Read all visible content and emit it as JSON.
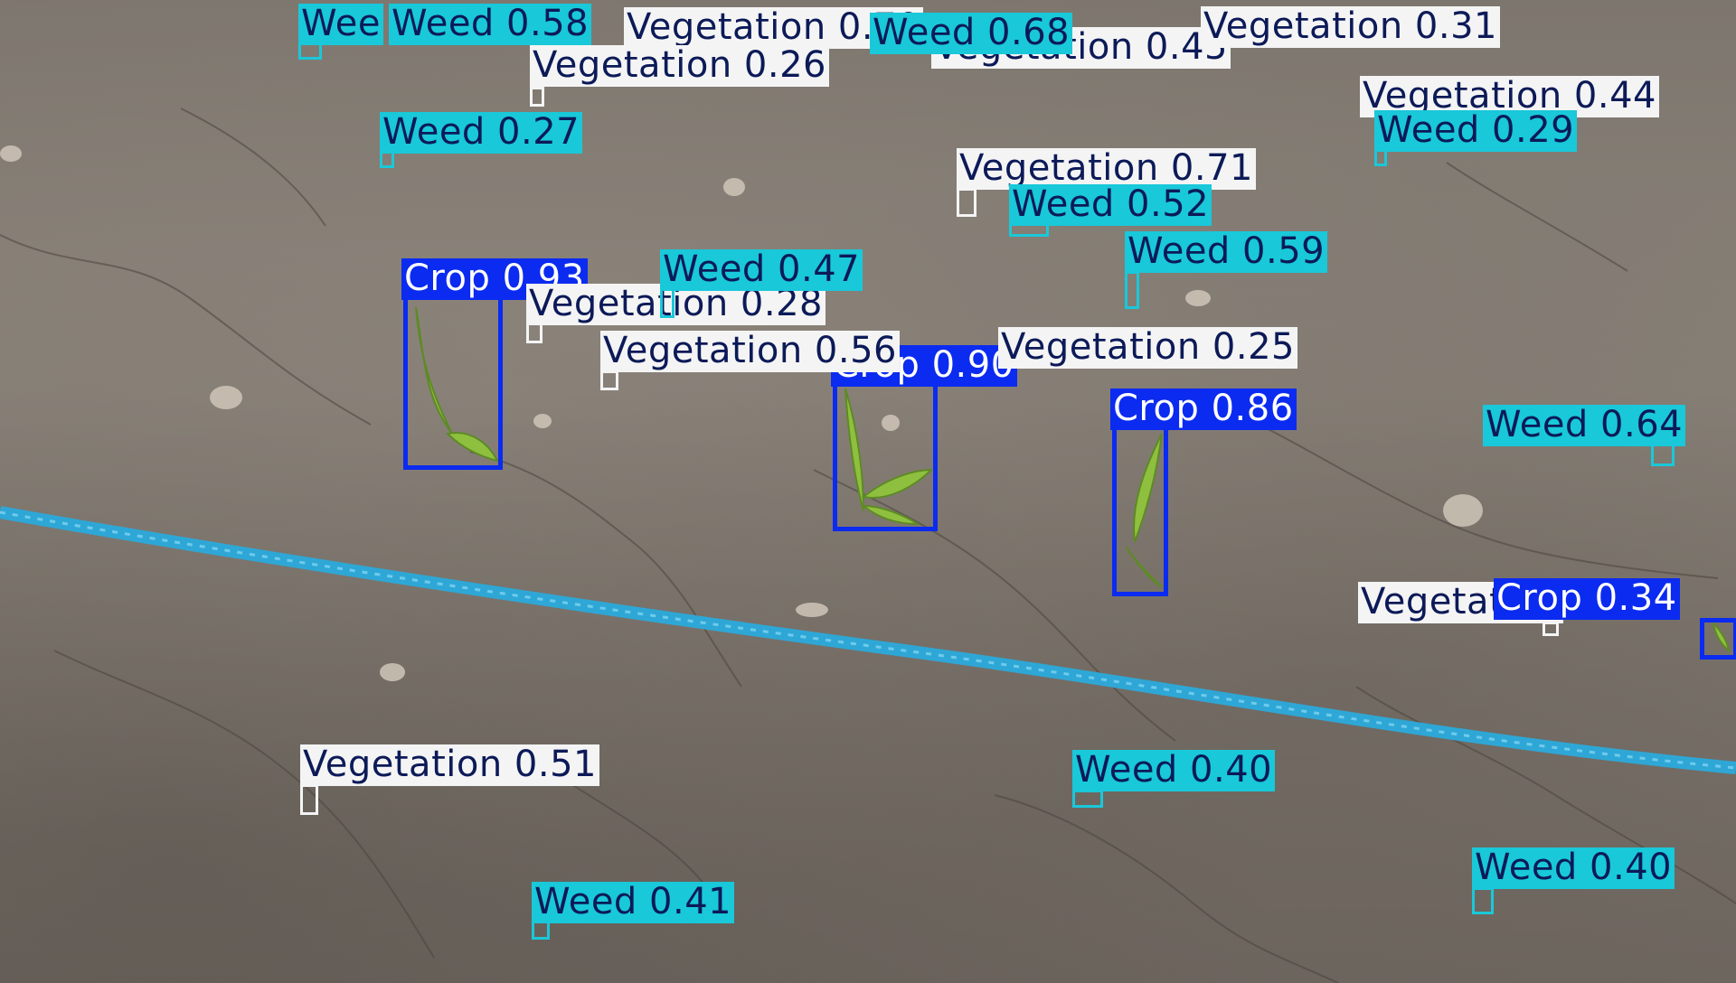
{
  "colors": {
    "crop": "#0b2bf0",
    "weed": "#19c8d9",
    "vegetation": "#f4f4f4",
    "label_text_dark": "#0c1a58",
    "soil": "#7d766e",
    "rope": "#2ea7d6"
  },
  "detections": [
    {
      "text": "Crop 0.93"
    },
    {
      "text": "Crop 0.90"
    },
    {
      "text": "Crop 0.86"
    },
    {
      "text": "Crop 0.34"
    },
    {
      "text": "Weed 0.58"
    },
    {
      "text": "Wee"
    },
    {
      "text": "Weed 0.68"
    },
    {
      "text": "Weed 0.27"
    },
    {
      "text": "Weed 0.29"
    },
    {
      "text": "Weed 0.52"
    },
    {
      "text": "Weed 0.59"
    },
    {
      "text": "Weed 0.47"
    },
    {
      "text": "Weed 0.64"
    },
    {
      "text": "Weed 0.40"
    },
    {
      "text": "Weed 0.40"
    },
    {
      "text": "Weed 0.41"
    },
    {
      "text": "Vegetation 0.70"
    },
    {
      "text": "Vegetation 0.31"
    },
    {
      "text": "Vegetation 0.45"
    },
    {
      "text": "Vegetation 0.44"
    },
    {
      "text": "Vegetation 0.26"
    },
    {
      "text": "Vegetation 0.71"
    },
    {
      "text": "Vegetation 0.28"
    },
    {
      "text": "Vegetation 0.56"
    },
    {
      "text": "Vegetation 0.25"
    },
    {
      "text": "Vegetation 0.51"
    },
    {
      "text": "Vegetation"
    }
  ]
}
